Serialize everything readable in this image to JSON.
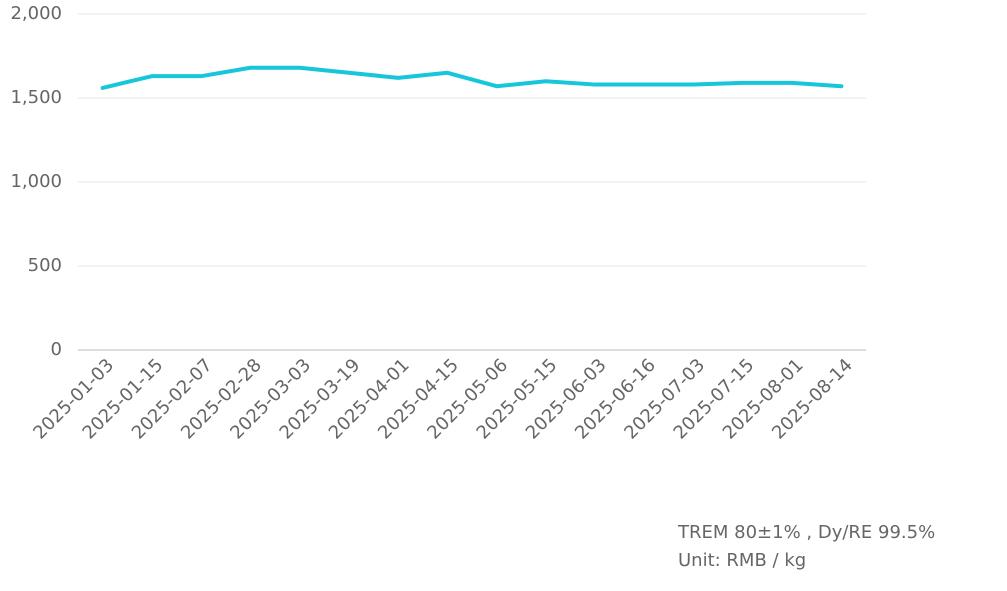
{
  "chart_data": {
    "type": "line",
    "categories": [
      "2025-01-03",
      "2025-01-15",
      "2025-02-07",
      "2025-02-28",
      "2025-03-03",
      "2025-03-19",
      "2025-04-01",
      "2025-04-15",
      "2025-05-06",
      "2025-05-15",
      "2025-06-03",
      "2025-06-16",
      "2025-07-03",
      "2025-07-15",
      "2025-08-01",
      "2025-08-14"
    ],
    "series": [
      {
        "color": "#17c6da",
        "values": [
          1560,
          1630,
          1630,
          1680,
          1680,
          1650,
          1620,
          1650,
          1570,
          1600,
          1580,
          1580,
          1580,
          1590,
          1590,
          1570
        ]
      }
    ],
    "ylim": [
      0,
      2000
    ],
    "yticks": [
      0,
      500,
      {
        "value": 1000,
        "label": "1,000"
      },
      {
        "value": 1500,
        "label": "1,500"
      },
      {
        "value": 2000,
        "label": "2,000"
      }
    ],
    "grid": true,
    "annotations": [
      "TREM 80±1% , Dy/RE 99.5%",
      "Unit: RMB / kg"
    ]
  }
}
